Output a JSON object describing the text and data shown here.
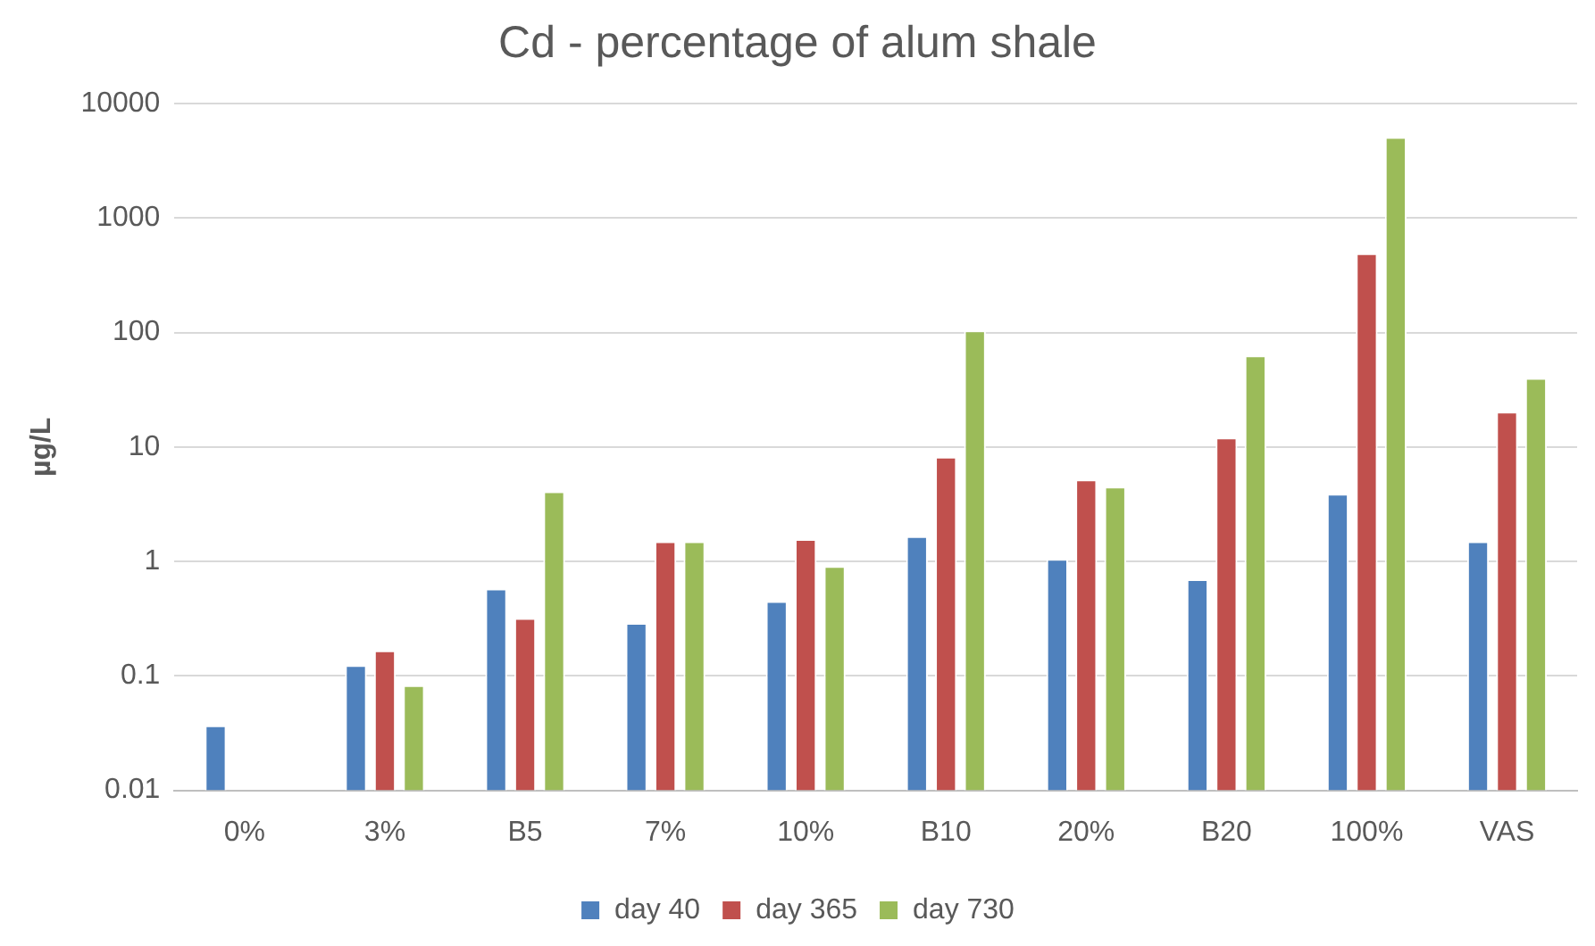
{
  "chart_data": {
    "type": "bar",
    "title": "Cd - percentage of alum shale",
    "ylabel": "µg/L",
    "categories": [
      "0%",
      "3%",
      "B5",
      "7%",
      "10%",
      "B10",
      "20%",
      "B20",
      "100%",
      "VAS"
    ],
    "series": [
      {
        "name": "day 40",
        "color": "#4f81bd",
        "values": [
          0.037,
          0.124,
          0.58,
          0.29,
          0.45,
          1.66,
          1.05,
          0.7,
          3.9,
          1.5
        ]
      },
      {
        "name": "day 365",
        "color": "#c0504d",
        "values": [
          null,
          0.167,
          0.32,
          1.5,
          1.57,
          8.2,
          5.2,
          12.1,
          493,
          20.3
        ]
      },
      {
        "name": "day 730",
        "color": "#9bbb59",
        "values": [
          null,
          0.083,
          4.1,
          1.5,
          0.91,
          104,
          4.5,
          63,
          5090,
          40
        ]
      }
    ],
    "log": true,
    "ylim": [
      0.01,
      10000
    ],
    "yticks": [
      0.01,
      0.1,
      1,
      10,
      100,
      1000,
      10000
    ],
    "grid": "y",
    "legend": "bottom"
  }
}
